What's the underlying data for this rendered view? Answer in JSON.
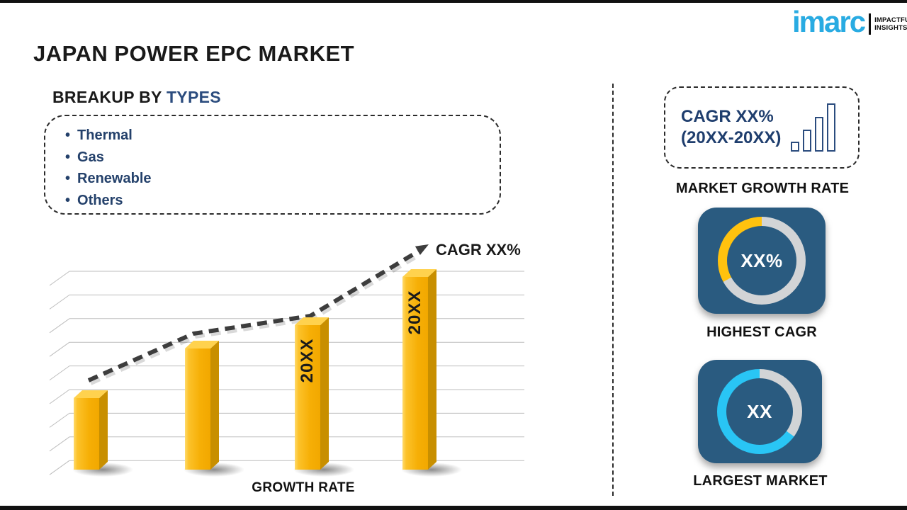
{
  "header": {
    "title": "JAPAN POWER EPC MARKET"
  },
  "logo": {
    "brand": "imarc",
    "tagline_line1": "IMPACTFUL",
    "tagline_line2": "INSIGHTS",
    "brand_color": "#29ABE2"
  },
  "breakup": {
    "heading_prefix": "BREAKUP BY",
    "heading_highlight": "TYPES",
    "items": [
      "Thermal",
      "Gas",
      "Renewable",
      "Others"
    ]
  },
  "chart_data": {
    "type": "bar",
    "categories": [
      "",
      "",
      "20XX",
      "20XX"
    ],
    "values": [
      36,
      61,
      73,
      97
    ],
    "values_note": "relative bar heights in % of plot height; y-axis unlabeled in source",
    "title": "",
    "xlabel": "GROWTH RATE",
    "ylabel": "",
    "trend_label": "CAGR XX%",
    "trend": "dashed ascending arrow over bars",
    "bar_color": "#FBB712",
    "grid": "horizontal gridlines with 3D slanted left wall, no tick labels"
  },
  "right_panel": {
    "growth_box": {
      "line1": "CAGR XX%",
      "line2": "(20XX-20XX)"
    },
    "growth_box_caption": "MARKET GROWTH RATE",
    "highest_cagr": {
      "value": "XX%",
      "caption": "HIGHEST CAGR",
      "ring_pct": 33,
      "ring_color": "#FFC20E"
    },
    "largest_market": {
      "value": "XX",
      "caption": "LARGEST MARKET",
      "ring_pct": 65,
      "ring_color": "#29C5F5"
    }
  },
  "colors": {
    "navy_text": "#1f3e6e",
    "tile_bg": "#2A5B80",
    "ring_gray": "#D2D4D6",
    "heading_highlight": "#2b4c7e"
  }
}
